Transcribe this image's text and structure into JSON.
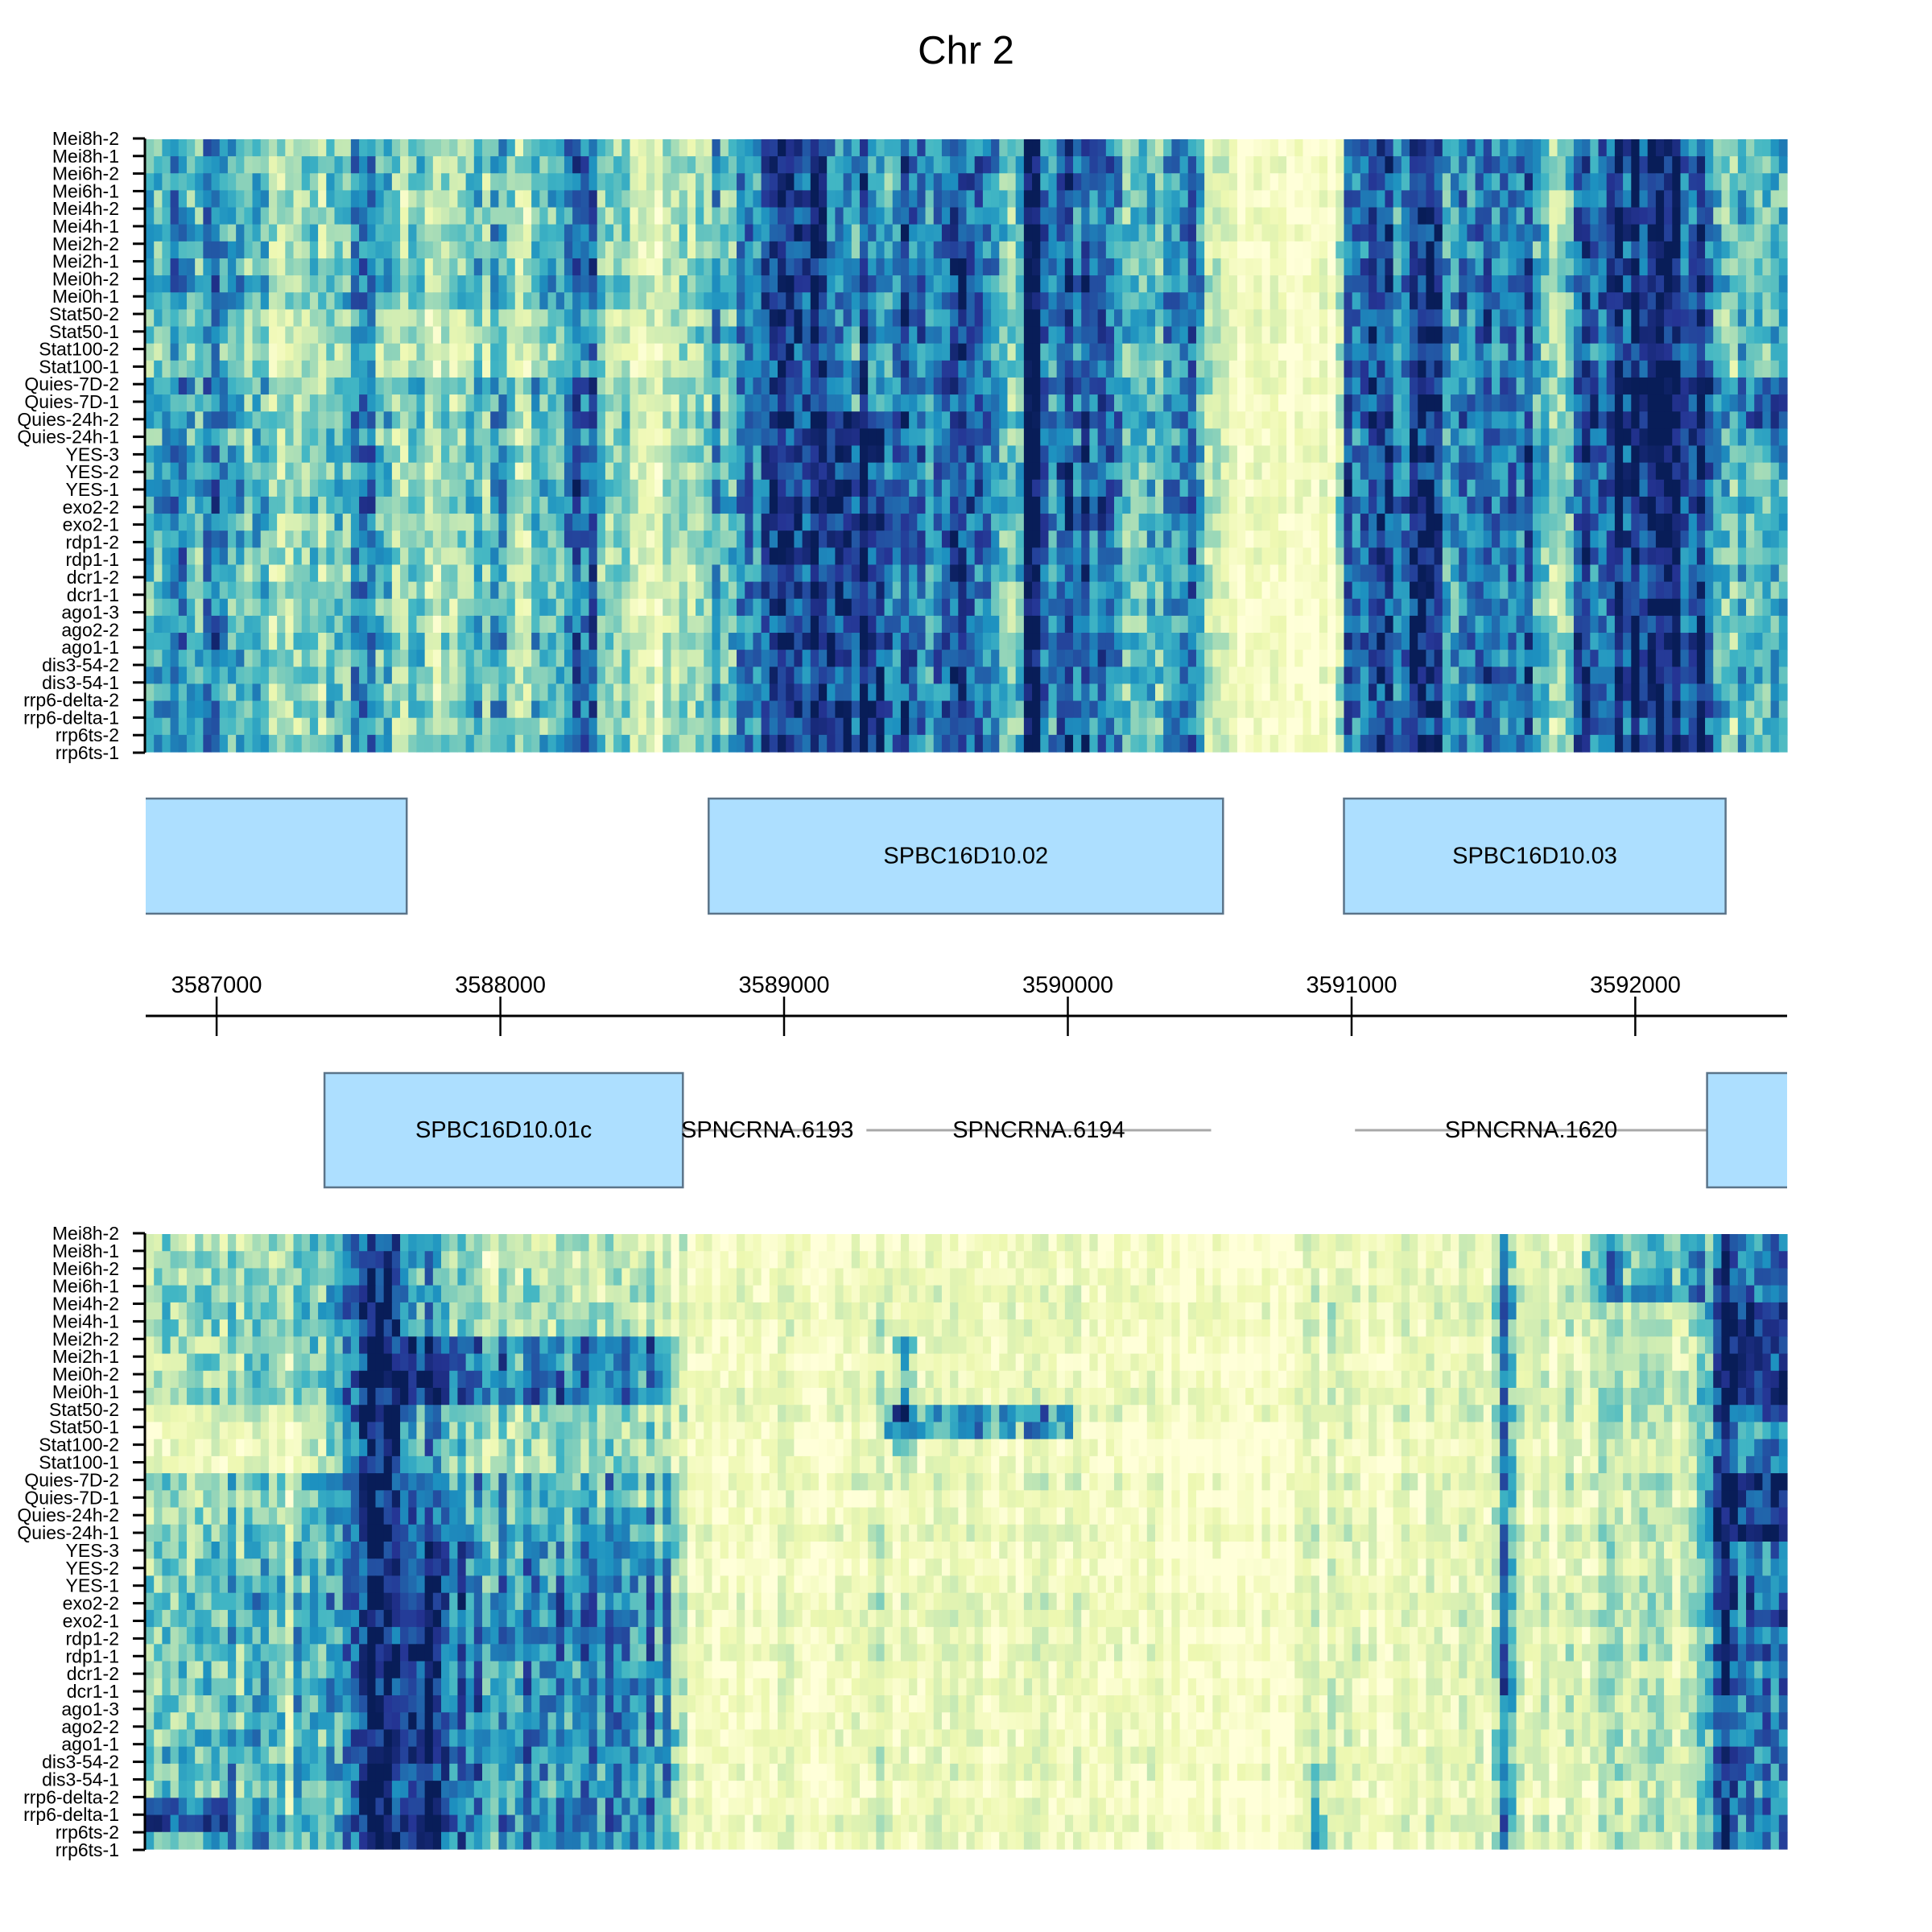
{
  "chart_data": {
    "type": "heatmap",
    "title": "Chr 2",
    "xlabel": "",
    "ylabel": "",
    "xlim": [
      3586750,
      3592535
    ],
    "x_ticks": [
      3587000,
      3588000,
      3589000,
      3590000,
      3591000,
      3592000
    ],
    "x_tick_labels": [
      "3587000",
      "3588000",
      "3589000",
      "3590000",
      "3591000",
      "3592000"
    ],
    "rows": [
      "Mei8h-2",
      "Mei8h-1",
      "Mei6h-2",
      "Mei6h-1",
      "Mei4h-2",
      "Mei4h-1",
      "Mei2h-2",
      "Mei2h-1",
      "Mei0h-2",
      "Mei0h-1",
      "Stat50-2",
      "Stat50-1",
      "Stat100-2",
      "Stat100-1",
      "Quies-7D-2",
      "Quies-7D-1",
      "Quies-24h-2",
      "Quies-24h-1",
      "YES-3",
      "YES-2",
      "YES-1",
      "exo2-2",
      "exo2-1",
      "rdp1-2",
      "rdp1-1",
      "dcr1-2",
      "dcr1-1",
      "ago1-3",
      "ago2-2",
      "ago1-1",
      "dis3-54-2",
      "dis3-54-1",
      "rrp6-delta-2",
      "rrp6-delta-1",
      "rrp6ts-2",
      "rrp6ts-1"
    ],
    "colormap": [
      "#ffffd9",
      "#edf8b1",
      "#c7e9b4",
      "#7fcdbb",
      "#41b6c4",
      "#1d91c0",
      "#225ea8",
      "#253494",
      "#081d58"
    ],
    "value_range": [
      0,
      1
    ],
    "n_columns": 200,
    "heatmaps": [
      {
        "profile": [
          [
            3586750,
            0.45
          ],
          [
            3586800,
            0.5
          ],
          [
            3586860,
            0.65
          ],
          [
            3586900,
            0.45
          ],
          [
            3586950,
            0.62
          ],
          [
            3587000,
            0.7
          ],
          [
            3587050,
            0.5
          ],
          [
            3587100,
            0.4
          ],
          [
            3587150,
            0.45
          ],
          [
            3587250,
            0.35
          ],
          [
            3587350,
            0.4
          ],
          [
            3587450,
            0.45
          ],
          [
            3587540,
            0.6
          ],
          [
            3587600,
            0.45
          ],
          [
            3587700,
            0.35
          ],
          [
            3587800,
            0.3
          ],
          [
            3587900,
            0.4
          ],
          [
            3588000,
            0.45
          ],
          [
            3588100,
            0.38
          ],
          [
            3588200,
            0.5
          ],
          [
            3588260,
            0.7
          ],
          [
            3588300,
            0.8
          ],
          [
            3588340,
            0.7
          ],
          [
            3588387,
            0.35
          ],
          [
            3588500,
            0.2
          ],
          [
            3588600,
            0.25
          ],
          [
            3588700,
            0.35
          ],
          [
            3588800,
            0.55
          ],
          [
            3588880,
            0.65
          ],
          [
            3588930,
            0.8
          ],
          [
            3588960,
            0.85
          ],
          [
            3589000,
            0.75
          ],
          [
            3589100,
            0.8
          ],
          [
            3589200,
            0.9
          ],
          [
            3589280,
            0.92
          ],
          [
            3589350,
            0.85
          ],
          [
            3589450,
            0.7
          ],
          [
            3589550,
            0.65
          ],
          [
            3589650,
            0.7
          ],
          [
            3589720,
            0.65
          ],
          [
            3589790,
            0.55
          ],
          [
            3589807,
            0.2
          ],
          [
            3589825,
            0.3
          ],
          [
            3589850,
            0.95
          ],
          [
            3589900,
            0.97
          ],
          [
            3589930,
            0.7
          ],
          [
            3590000,
            0.7
          ],
          [
            3590100,
            0.7
          ],
          [
            3590160,
            0.65
          ],
          [
            3590190,
            0.85
          ],
          [
            3590215,
            0.35
          ],
          [
            3590260,
            0.45
          ],
          [
            3590330,
            0.5
          ],
          [
            3590400,
            0.75
          ],
          [
            3590450,
            0.7
          ],
          [
            3590494,
            0.35
          ],
          [
            3590540,
            0.12
          ],
          [
            3590600,
            0.08
          ],
          [
            3590800,
            0.06
          ],
          [
            3590930,
            0.08
          ],
          [
            3590973,
            0.6
          ],
          [
            3591050,
            0.65
          ],
          [
            3591150,
            0.7
          ],
          [
            3591230,
            0.9
          ],
          [
            3591290,
            0.92
          ],
          [
            3591330,
            0.7
          ],
          [
            3591500,
            0.7
          ],
          [
            3591640,
            0.65
          ],
          [
            3591700,
            0.4
          ],
          [
            3591740,
            0.25
          ],
          [
            3591790,
            0.7
          ],
          [
            3591850,
            0.85
          ],
          [
            3592000,
            0.9
          ],
          [
            3592150,
            0.88
          ],
          [
            3592260,
            0.8
          ],
          [
            3592318,
            0.5
          ],
          [
            3592400,
            0.4
          ],
          [
            3592535,
            0.45
          ]
        ],
        "patches": [
          {
            "rows": [
              0,
              15
            ],
            "bp": [
              3589150,
              3589380
            ],
            "add": -0.22
          },
          {
            "rows": [
              10,
              13
            ],
            "bp": [
              3586750,
              3588500
            ],
            "add": -0.12
          },
          {
            "rows": [
              14,
              17
            ],
            "bp": [
              3591780,
              3592320
            ],
            "add": 0.1
          },
          {
            "rows": [
              14,
              17
            ],
            "bp": [
              3592320,
              3592535
            ],
            "add": 0.2
          },
          {
            "rows": [
              10,
              13
            ],
            "bp": [
              3591780,
              3592320
            ],
            "add": -0.05
          }
        ]
      },
      {
        "profile": [
          [
            3586750,
            0.35
          ],
          [
            3586800,
            0.42
          ],
          [
            3586850,
            0.38
          ],
          [
            3586900,
            0.3
          ],
          [
            3586950,
            0.4
          ],
          [
            3587000,
            0.42
          ],
          [
            3587100,
            0.38
          ],
          [
            3587200,
            0.3
          ],
          [
            3587300,
            0.3
          ],
          [
            3587360,
            0.45
          ],
          [
            3587420,
            0.6
          ],
          [
            3587480,
            0.8
          ],
          [
            3587510,
            0.98
          ],
          [
            3587580,
            1.0
          ],
          [
            3587640,
            0.95
          ],
          [
            3587680,
            0.7
          ],
          [
            3587750,
            0.72
          ],
          [
            3587800,
            0.6
          ],
          [
            3587900,
            0.5
          ],
          [
            3588000,
            0.5
          ],
          [
            3588150,
            0.55
          ],
          [
            3588300,
            0.5
          ],
          [
            3588450,
            0.5
          ],
          [
            3588560,
            0.45
          ],
          [
            3588620,
            0.3
          ],
          [
            3588660,
            0.08
          ],
          [
            3588800,
            0.06
          ],
          [
            3588950,
            0.1
          ],
          [
            3589100,
            0.08
          ],
          [
            3589250,
            0.12
          ],
          [
            3589310,
            0.2
          ],
          [
            3589350,
            0.12
          ],
          [
            3589500,
            0.1
          ],
          [
            3589700,
            0.1
          ],
          [
            3589900,
            0.1
          ],
          [
            3590050,
            0.12
          ],
          [
            3590250,
            0.08
          ],
          [
            3590400,
            0.05
          ],
          [
            3590600,
            0.04
          ],
          [
            3590800,
            0.06
          ],
          [
            3590860,
            0.18
          ],
          [
            3590900,
            0.12
          ],
          [
            3591000,
            0.15
          ],
          [
            3591050,
            0.1
          ],
          [
            3591200,
            0.1
          ],
          [
            3591400,
            0.12
          ],
          [
            3591500,
            0.12
          ],
          [
            3591520,
            0.6
          ],
          [
            3591560,
            0.6
          ],
          [
            3591580,
            0.12
          ],
          [
            3591700,
            0.15
          ],
          [
            3591800,
            0.2
          ],
          [
            3592000,
            0.22
          ],
          [
            3592150,
            0.2
          ],
          [
            3592250,
            0.3
          ],
          [
            3592300,
            0.75
          ],
          [
            3592400,
            0.78
          ],
          [
            3592470,
            0.7
          ],
          [
            3592535,
            0.6
          ]
        ],
        "patches": [
          {
            "rows": [
              0,
              5
            ],
            "bp": [
              3587650,
              3588620
            ],
            "add": -0.22
          },
          {
            "rows": [
              10,
              13
            ],
            "bp": [
              3586750,
              3587450
            ],
            "add": -0.2
          },
          {
            "rows": [
              10,
              13
            ],
            "bp": [
              3587650,
              3588620
            ],
            "add": -0.15
          },
          {
            "rows": [
              6,
              9
            ],
            "bp": [
              3587650,
              3588620
            ],
            "add": 0.15
          },
          {
            "rows": [
              18,
              35
            ],
            "bp": [
              3587650,
              3588620
            ],
            "add": 0.12
          },
          {
            "rows": [
              10,
              11
            ],
            "bp": [
              3589364,
              3590016
            ],
            "add": 0.4
          },
          {
            "rows": [
              6,
              13
            ],
            "bp": [
              3589390,
              3589460
            ],
            "add": 0.3
          },
          {
            "rows": [
              4,
              9
            ],
            "bp": [
              3592300,
              3592535
            ],
            "add": 0.2
          },
          {
            "rows": [
              14,
              17
            ],
            "bp": [
              3592250,
              3592535
            ],
            "add": 0.2
          },
          {
            "rows": [
              0,
              3
            ],
            "bp": [
              3591800,
              3592250
            ],
            "add": 0.28
          },
          {
            "rows": [
              33,
              34
            ],
            "bp": [
              3586750,
              3587050
            ],
            "add": 0.35
          },
          {
            "rows": [
              31,
              35
            ],
            "bp": [
              3590850,
              3590920
            ],
            "add": 0.3
          },
          {
            "rows": [
              18,
              35
            ],
            "bp": [
              3586750,
              3587300
            ],
            "add": 0.12
          }
        ]
      }
    ],
    "gene_style": {
      "fill": "#addfff",
      "border": "#5b7489",
      "ncrna_line": "#a8a8a8"
    },
    "genes": {
      "plus_strand": [
        {
          "type": "gene",
          "start": null,
          "end": 3587670
        },
        {
          "type": "gene",
          "label": "SPBC16D10.02",
          "start": 3588734,
          "end": 3590547
        },
        {
          "type": "gene",
          "label": "SPBC16D10.03",
          "start": 3590973,
          "end": 3592318
        }
      ],
      "minus_strand": [
        {
          "type": "gene",
          "label": "SPBC16D10.01c",
          "start": 3587380,
          "end": 3588643
        },
        {
          "type": "ncrna",
          "label": "SPNCRNA.6193",
          "start": 3588643,
          "end": 3589239
        },
        {
          "type": "ncrna",
          "label": "SPNCRNA.6194",
          "start": 3589290,
          "end": 3590505
        },
        {
          "type": "ncrna",
          "label": "SPNCRNA.1620",
          "start": 3591012,
          "end": 3592253
        },
        {
          "type": "gene",
          "start": 3592253,
          "end": null
        }
      ]
    }
  }
}
